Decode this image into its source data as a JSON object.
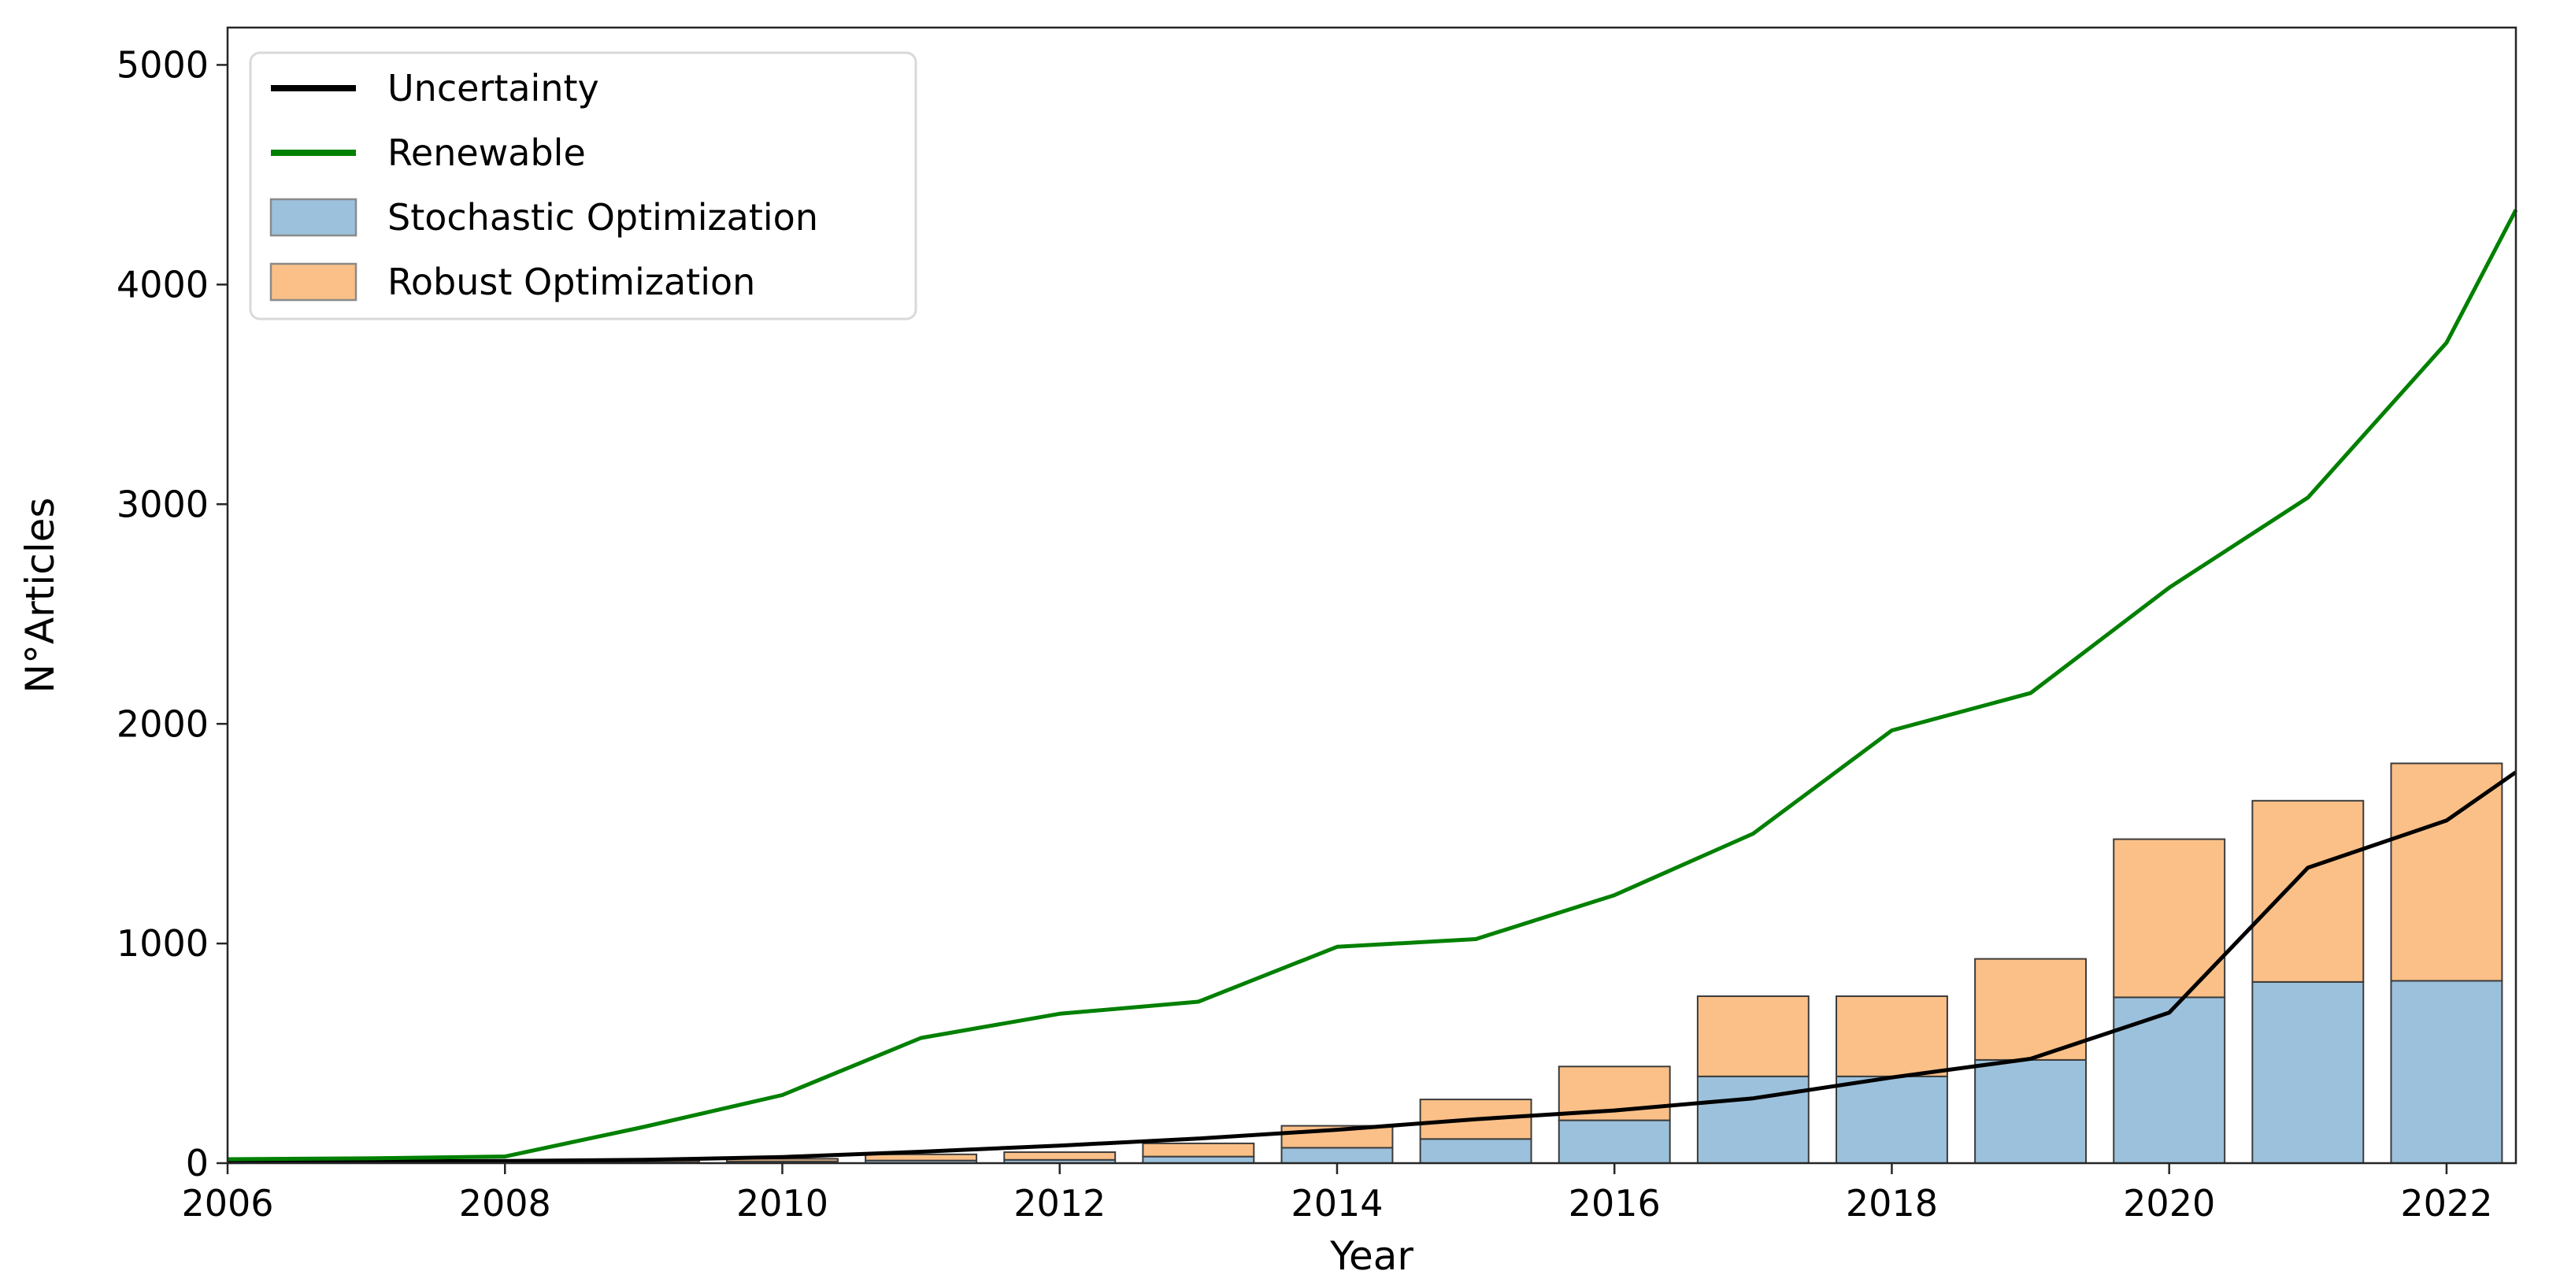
{
  "chart_data": {
    "type": "combo-line-stacked-bar",
    "title": "",
    "xlabel": "Year",
    "ylabel": "N°Articles",
    "xlim": [
      2006,
      2022.5
    ],
    "ylim": [
      0,
      5170
    ],
    "xticks": [
      2006,
      2008,
      2010,
      2012,
      2014,
      2016,
      2018,
      2020,
      2022
    ],
    "yticks": [
      0,
      1000,
      2000,
      3000,
      4000,
      5000
    ],
    "grid": false,
    "legend_position": "upper left",
    "categories": [
      2006,
      2007,
      2008,
      2009,
      2010,
      2011,
      2012,
      2013,
      2014,
      2015,
      2016,
      2017,
      2018,
      2019,
      2020,
      2021,
      2022
    ],
    "series": [
      {
        "name": "Uncertainty",
        "kind": "line",
        "color": "#000000",
        "values": [
          5,
          7,
          10,
          15,
          28,
          52,
          80,
          112,
          152,
          200,
          240,
          295,
          390,
          475,
          685,
          1345,
          1560
        ],
        "clip_x": 2022.5,
        "edge_value": 1780
      },
      {
        "name": "Renewable",
        "kind": "line",
        "color": "#008000",
        "values": [
          18,
          22,
          30,
          165,
          310,
          570,
          680,
          735,
          985,
          1020,
          1220,
          1500,
          1970,
          2140,
          2620,
          3030,
          3735
        ],
        "clip_x": 2022.5,
        "edge_value": 4340
      },
      {
        "name": "Stochastic Optimization",
        "kind": "bar",
        "color": "#9cc1dc",
        "edge_color": "#3c3c3c",
        "values": [
          1,
          1,
          2,
          4,
          8,
          12,
          15,
          30,
          70,
          110,
          195,
          395,
          395,
          470,
          755,
          825,
          830
        ]
      },
      {
        "name": "Robust Optimization",
        "kind": "bar",
        "color": "#fbc088",
        "edge_color": "#3c3c3c",
        "values": [
          1,
          2,
          3,
          8,
          12,
          28,
          35,
          60,
          100,
          180,
          245,
          365,
          365,
          460,
          720,
          825,
          990
        ]
      }
    ],
    "bar_width_years": 0.8,
    "colors": {
      "spine": "#262626",
      "tick": "#262626",
      "legend_border": "#d9d9d9",
      "legend_bg": "#ffffff",
      "legend_patch_border": "#8a8a8a"
    }
  }
}
